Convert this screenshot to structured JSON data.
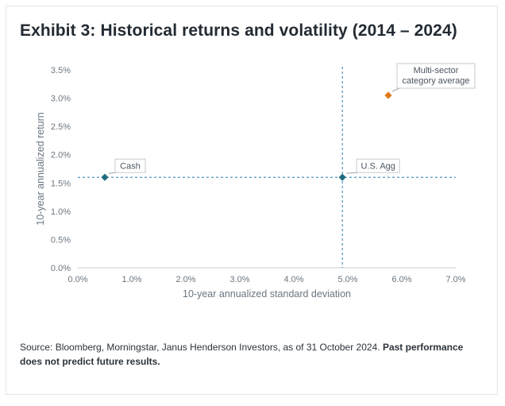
{
  "chart_data": {
    "type": "scatter",
    "title": "Exhibit 3: Historical returns and volatility (2014 – 2024)",
    "xlabel": "10-year annualized standard deviation",
    "ylabel": "10-year annualized return",
    "xlim": [
      0,
      7
    ],
    "ylim": [
      0,
      3.5
    ],
    "x_ticks": [
      "0.0%",
      "1.0%",
      "2.0%",
      "3.0%",
      "4.0%",
      "5.0%",
      "6.0%",
      "7.0%"
    ],
    "y_ticks": [
      "0.0%",
      "0.5%",
      "1.0%",
      "1.5%",
      "2.0%",
      "2.5%",
      "3.0%",
      "3.5%"
    ],
    "grid": false,
    "reference_lines": {
      "x": 4.9,
      "y": 1.6
    },
    "points": [
      {
        "label": "Cash",
        "x": 0.5,
        "y": 1.6,
        "color": "#1f6e7f"
      },
      {
        "label": "U.S. Agg",
        "x": 4.9,
        "y": 1.6,
        "color": "#1f6e7f"
      },
      {
        "label": "Multi-sector category average",
        "label_lines": [
          "Multi-sector",
          "category average"
        ],
        "x": 5.75,
        "y": 3.05,
        "color": "#e07a1f"
      }
    ],
    "colors": {
      "reference_line": "#3b86b8",
      "axis": "#c9cfd4"
    }
  },
  "footer": {
    "source": "Source: Bloomberg, Morningstar, Janus Henderson Investors, as of 31 October 2024.",
    "disclaimer": "Past performance does not predict future results."
  }
}
